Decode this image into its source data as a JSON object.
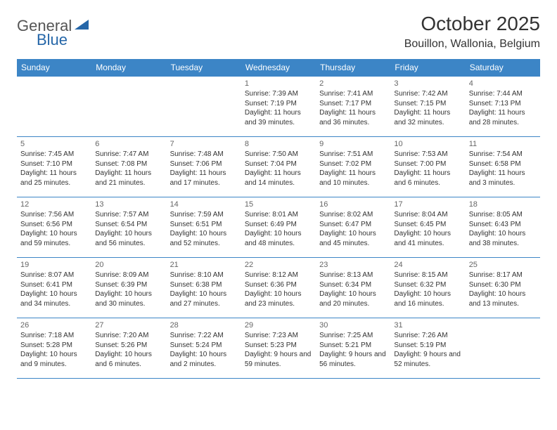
{
  "logo": {
    "general": "General",
    "blue": "Blue"
  },
  "header": {
    "title": "October 2025",
    "location": "Bouillon, Wallonia, Belgium"
  },
  "weekdays": [
    "Sunday",
    "Monday",
    "Tuesday",
    "Wednesday",
    "Thursday",
    "Friday",
    "Saturday"
  ],
  "colors": {
    "header_bg": "#3c85c6",
    "header_fg": "#ffffff",
    "accent": "#2566a8"
  },
  "weeks": [
    [
      null,
      null,
      null,
      {
        "n": "1",
        "sunrise": "7:39 AM",
        "sunset": "7:19 PM",
        "daylight": "11 hours and 39 minutes."
      },
      {
        "n": "2",
        "sunrise": "7:41 AM",
        "sunset": "7:17 PM",
        "daylight": "11 hours and 36 minutes."
      },
      {
        "n": "3",
        "sunrise": "7:42 AM",
        "sunset": "7:15 PM",
        "daylight": "11 hours and 32 minutes."
      },
      {
        "n": "4",
        "sunrise": "7:44 AM",
        "sunset": "7:13 PM",
        "daylight": "11 hours and 28 minutes."
      }
    ],
    [
      {
        "n": "5",
        "sunrise": "7:45 AM",
        "sunset": "7:10 PM",
        "daylight": "11 hours and 25 minutes."
      },
      {
        "n": "6",
        "sunrise": "7:47 AM",
        "sunset": "7:08 PM",
        "daylight": "11 hours and 21 minutes."
      },
      {
        "n": "7",
        "sunrise": "7:48 AM",
        "sunset": "7:06 PM",
        "daylight": "11 hours and 17 minutes."
      },
      {
        "n": "8",
        "sunrise": "7:50 AM",
        "sunset": "7:04 PM",
        "daylight": "11 hours and 14 minutes."
      },
      {
        "n": "9",
        "sunrise": "7:51 AM",
        "sunset": "7:02 PM",
        "daylight": "11 hours and 10 minutes."
      },
      {
        "n": "10",
        "sunrise": "7:53 AM",
        "sunset": "7:00 PM",
        "daylight": "11 hours and 6 minutes."
      },
      {
        "n": "11",
        "sunrise": "7:54 AM",
        "sunset": "6:58 PM",
        "daylight": "11 hours and 3 minutes."
      }
    ],
    [
      {
        "n": "12",
        "sunrise": "7:56 AM",
        "sunset": "6:56 PM",
        "daylight": "10 hours and 59 minutes."
      },
      {
        "n": "13",
        "sunrise": "7:57 AM",
        "sunset": "6:54 PM",
        "daylight": "10 hours and 56 minutes."
      },
      {
        "n": "14",
        "sunrise": "7:59 AM",
        "sunset": "6:51 PM",
        "daylight": "10 hours and 52 minutes."
      },
      {
        "n": "15",
        "sunrise": "8:01 AM",
        "sunset": "6:49 PM",
        "daylight": "10 hours and 48 minutes."
      },
      {
        "n": "16",
        "sunrise": "8:02 AM",
        "sunset": "6:47 PM",
        "daylight": "10 hours and 45 minutes."
      },
      {
        "n": "17",
        "sunrise": "8:04 AM",
        "sunset": "6:45 PM",
        "daylight": "10 hours and 41 minutes."
      },
      {
        "n": "18",
        "sunrise": "8:05 AM",
        "sunset": "6:43 PM",
        "daylight": "10 hours and 38 minutes."
      }
    ],
    [
      {
        "n": "19",
        "sunrise": "8:07 AM",
        "sunset": "6:41 PM",
        "daylight": "10 hours and 34 minutes."
      },
      {
        "n": "20",
        "sunrise": "8:09 AM",
        "sunset": "6:39 PM",
        "daylight": "10 hours and 30 minutes."
      },
      {
        "n": "21",
        "sunrise": "8:10 AM",
        "sunset": "6:38 PM",
        "daylight": "10 hours and 27 minutes."
      },
      {
        "n": "22",
        "sunrise": "8:12 AM",
        "sunset": "6:36 PM",
        "daylight": "10 hours and 23 minutes."
      },
      {
        "n": "23",
        "sunrise": "8:13 AM",
        "sunset": "6:34 PM",
        "daylight": "10 hours and 20 minutes."
      },
      {
        "n": "24",
        "sunrise": "8:15 AM",
        "sunset": "6:32 PM",
        "daylight": "10 hours and 16 minutes."
      },
      {
        "n": "25",
        "sunrise": "8:17 AM",
        "sunset": "6:30 PM",
        "daylight": "10 hours and 13 minutes."
      }
    ],
    [
      {
        "n": "26",
        "sunrise": "7:18 AM",
        "sunset": "5:28 PM",
        "daylight": "10 hours and 9 minutes."
      },
      {
        "n": "27",
        "sunrise": "7:20 AM",
        "sunset": "5:26 PM",
        "daylight": "10 hours and 6 minutes."
      },
      {
        "n": "28",
        "sunrise": "7:22 AM",
        "sunset": "5:24 PM",
        "daylight": "10 hours and 2 minutes."
      },
      {
        "n": "29",
        "sunrise": "7:23 AM",
        "sunset": "5:23 PM",
        "daylight": "9 hours and 59 minutes."
      },
      {
        "n": "30",
        "sunrise": "7:25 AM",
        "sunset": "5:21 PM",
        "daylight": "9 hours and 56 minutes."
      },
      {
        "n": "31",
        "sunrise": "7:26 AM",
        "sunset": "5:19 PM",
        "daylight": "9 hours and 52 minutes."
      },
      null
    ]
  ],
  "labels": {
    "sunrise": "Sunrise:",
    "sunset": "Sunset:",
    "daylight": "Daylight:"
  }
}
